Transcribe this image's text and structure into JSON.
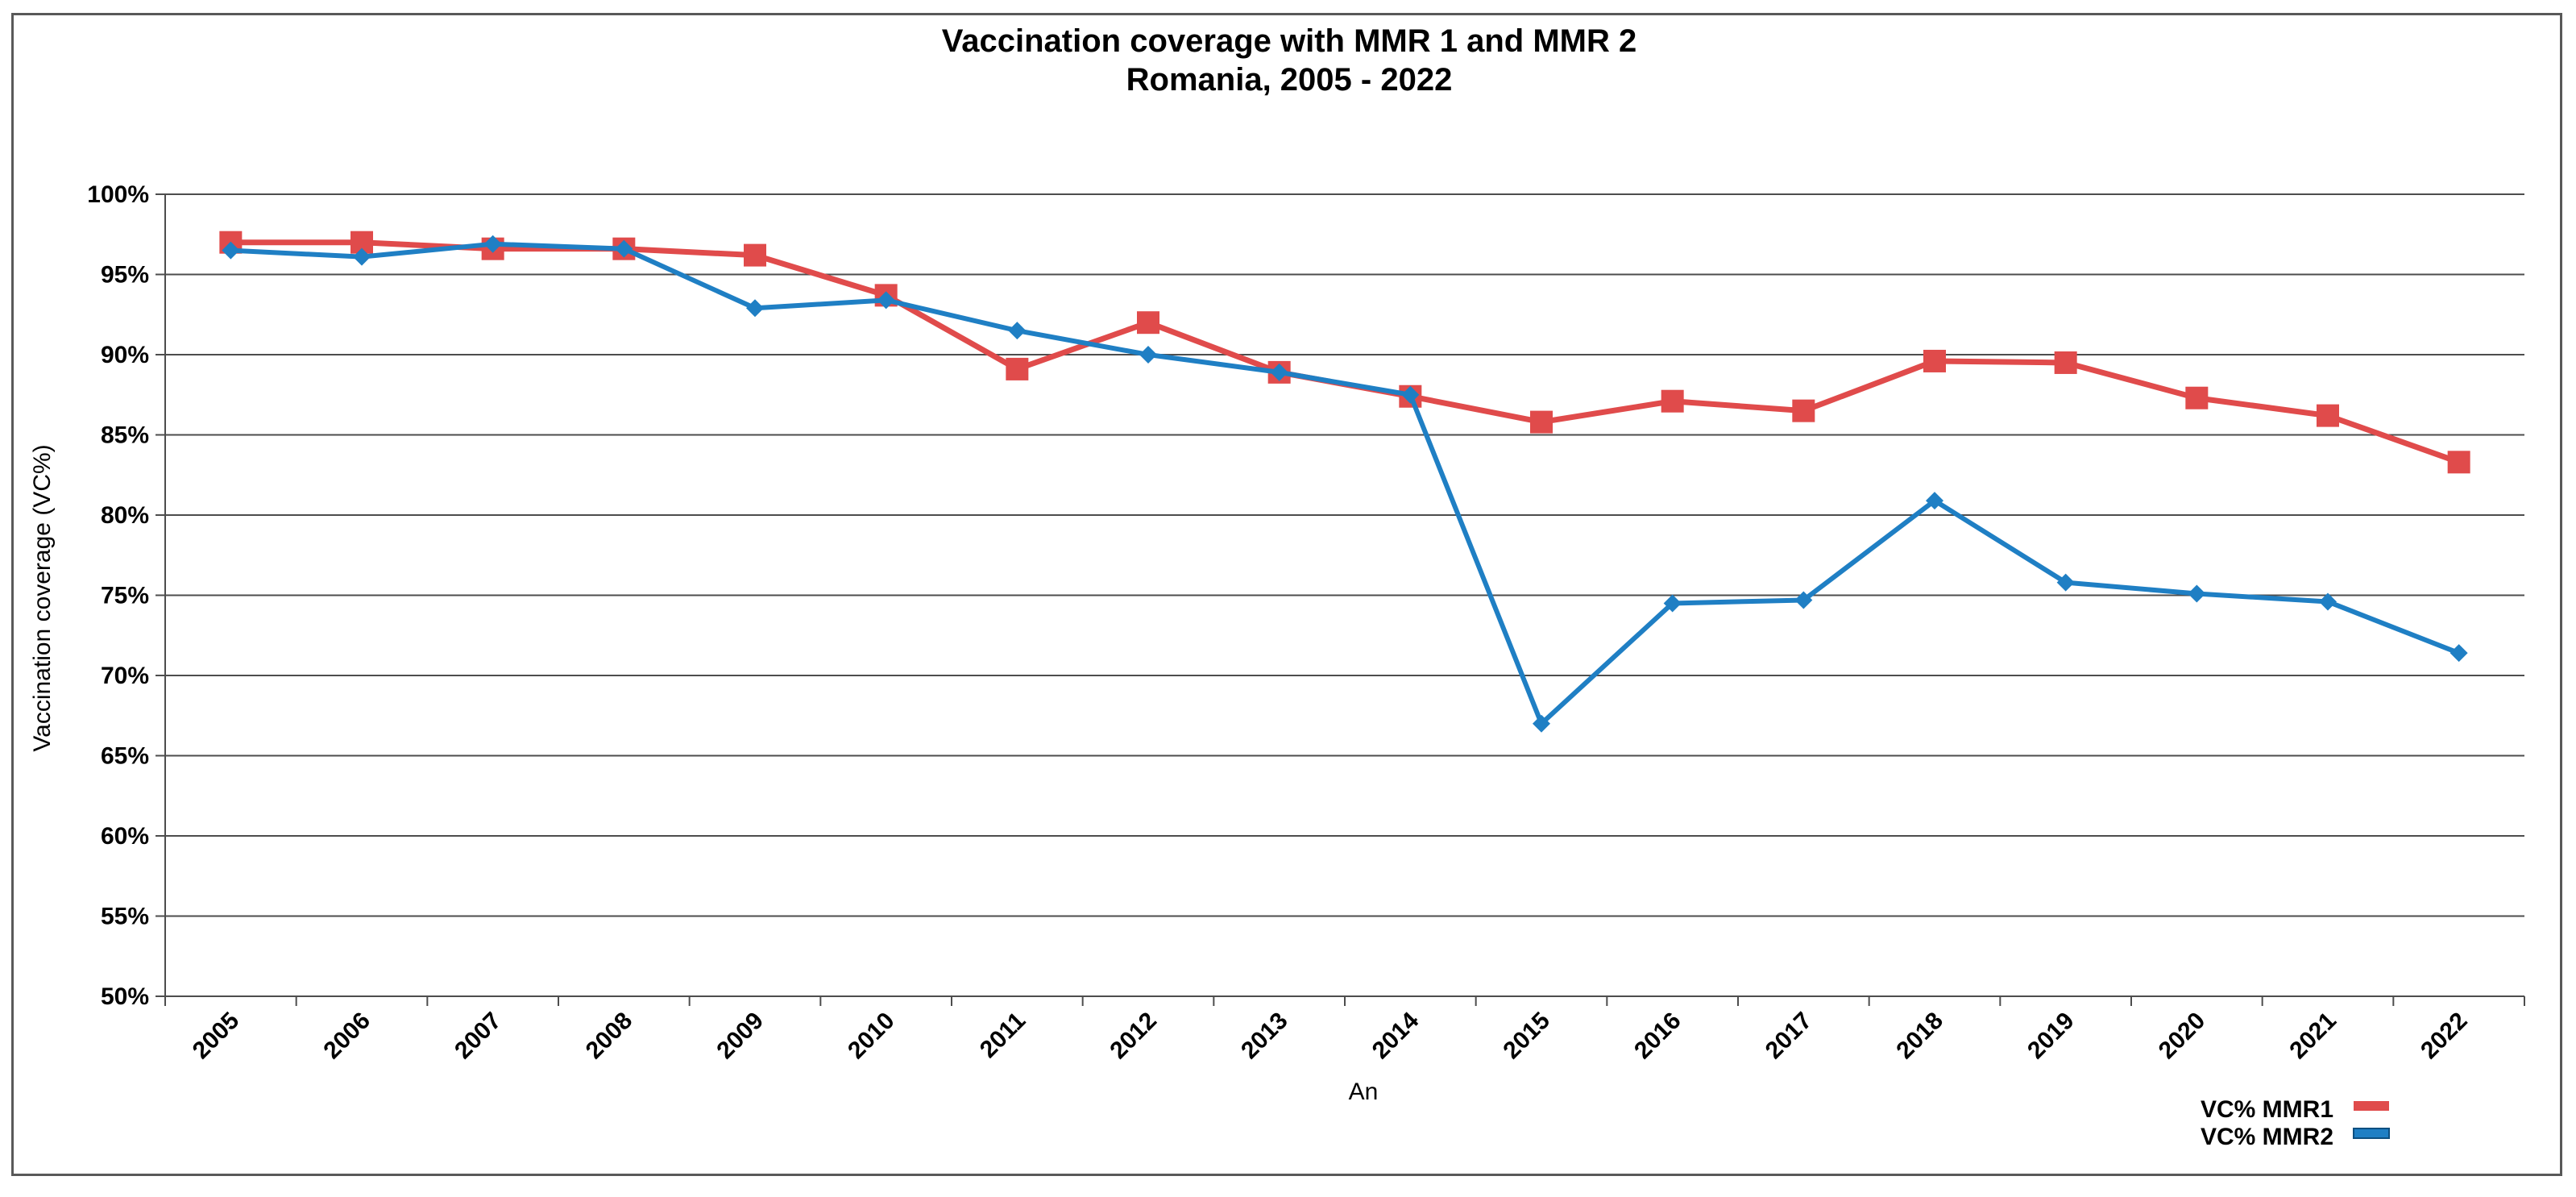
{
  "chart_data": {
    "type": "line",
    "title": "Vaccination coverage with MMR 1 and MMR 2",
    "subtitle": "Romania, 2005 - 2022",
    "xlabel": "An",
    "ylabel": "Vaccination coverage (VC%)",
    "ylim": [
      50,
      100
    ],
    "yticks": [
      "50%",
      "55%",
      "60%",
      "65%",
      "70%",
      "75%",
      "80%",
      "85%",
      "90%",
      "95%",
      "100%"
    ],
    "categories": [
      "2005",
      "2006",
      "2007",
      "2008",
      "2009",
      "2010",
      "2011",
      "2012",
      "2013",
      "2014",
      "2015",
      "2016",
      "2017",
      "2018",
      "2019",
      "2020",
      "2021",
      "2022"
    ],
    "grid": true,
    "legend_position": "bottom-right",
    "series": [
      {
        "name": "VC% MMR1",
        "color": "#e04b4b",
        "marker": "square",
        "values": [
          97.0,
          97.0,
          96.6,
          96.6,
          96.2,
          93.7,
          89.1,
          92.0,
          88.9,
          87.4,
          85.8,
          87.1,
          86.5,
          89.6,
          89.5,
          87.3,
          86.2,
          83.3
        ]
      },
      {
        "name": "VC% MMR2",
        "color": "#1f7fc4",
        "marker": "diamond",
        "values": [
          96.5,
          96.1,
          96.9,
          96.6,
          92.9,
          93.4,
          91.5,
          90.0,
          88.9,
          87.5,
          67.0,
          74.5,
          74.7,
          80.9,
          75.8,
          75.1,
          74.6,
          71.4
        ]
      }
    ]
  }
}
